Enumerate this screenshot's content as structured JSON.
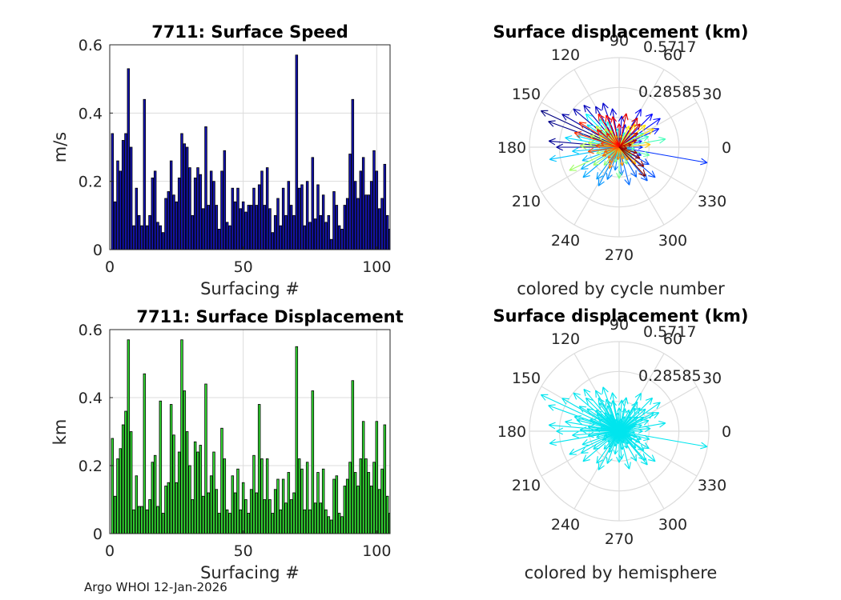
{
  "footer": "Argo WHOI 12-Jan-2026",
  "colors": {
    "speed_bar": "#1414b4",
    "disp_bar": "#33dd33",
    "grid": "#dcdcdc",
    "hemisphere_arrow": "#00e5ee"
  },
  "chart_data": [
    {
      "type": "bar",
      "title": "7711: Surface Speed",
      "xlabel": "Surfacing #",
      "ylabel": "m/s",
      "xlim": [
        0,
        105
      ],
      "ylim": [
        0,
        0.6
      ],
      "xticks": [
        "0",
        "50",
        "100"
      ],
      "yticks": [
        "0",
        "0.2",
        "0.4",
        "0.6"
      ],
      "x_start": 1,
      "values": [
        0.34,
        0.14,
        0.26,
        0.23,
        0.32,
        0.34,
        0.53,
        0.3,
        0.07,
        0.18,
        0.1,
        0.07,
        0.44,
        0.07,
        0.1,
        0.21,
        0.23,
        0.08,
        0.07,
        0.05,
        0.15,
        0.17,
        0.26,
        0.16,
        0.14,
        0.21,
        0.34,
        0.31,
        0.3,
        0.24,
        0.1,
        0.21,
        0.24,
        0.22,
        0.12,
        0.36,
        0.13,
        0.23,
        0.2,
        0.13,
        0.06,
        0.23,
        0.29,
        0.08,
        0.07,
        0.18,
        0.14,
        0.18,
        0.12,
        0.14,
        0.11,
        0.13,
        0.13,
        0.18,
        0.13,
        0.19,
        0.23,
        0.13,
        0.24,
        0.12,
        0.05,
        0.1,
        0.15,
        0.07,
        0.18,
        0.1,
        0.2,
        0.13,
        0.1,
        0.57,
        0.18,
        0.19,
        0.07,
        0.2,
        0.08,
        0.27,
        0.09,
        0.19,
        0.1,
        0.16,
        0.08,
        0.1,
        0.03,
        0.17,
        0.13,
        0.07,
        0.06,
        0.13,
        0.15,
        0.28,
        0.44,
        0.2,
        0.15,
        0.23,
        0.27,
        0.16,
        0.16,
        0.2,
        0.29,
        0.23,
        0.12,
        0.15,
        0.25,
        0.1,
        0.06
      ]
    },
    {
      "type": "polar_vectors",
      "title": "Surface displacement (km)",
      "caption": "colored by cycle number",
      "rticks": [
        "0.28585",
        "0.5717"
      ],
      "rmax": 0.5717,
      "angle_ticks": [
        "0",
        "30",
        "60",
        "90",
        "120",
        "150",
        "180",
        "210",
        "240",
        "270",
        "300",
        "330"
      ],
      "vectors": [
        [
          155,
          0.55
        ],
        [
          160,
          0.48
        ],
        [
          175,
          0.45
        ],
        [
          180,
          0.4
        ],
        [
          150,
          0.42
        ],
        [
          140,
          0.38
        ],
        [
          130,
          0.35
        ],
        [
          120,
          0.3
        ],
        [
          110,
          0.3
        ],
        [
          100,
          0.25
        ],
        [
          85,
          0.2
        ],
        [
          75,
          0.15
        ],
        [
          60,
          0.28
        ],
        [
          45,
          0.3
        ],
        [
          35,
          0.32
        ],
        [
          25,
          0.28
        ],
        [
          15,
          0.15
        ],
        [
          0,
          0.15
        ],
        [
          -10,
          0.57
        ],
        [
          -20,
          0.15
        ],
        [
          -30,
          0.22
        ],
        [
          -40,
          0.3
        ],
        [
          -50,
          0.28
        ],
        [
          -60,
          0.22
        ],
        [
          -75,
          0.25
        ],
        [
          -85,
          0.18
        ],
        [
          -100,
          0.15
        ],
        [
          -110,
          0.22
        ],
        [
          -118,
          0.28
        ],
        [
          -125,
          0.25
        ],
        [
          -140,
          0.3
        ],
        [
          -150,
          0.28
        ],
        [
          -160,
          0.25
        ],
        [
          -170,
          0.45
        ],
        [
          -175,
          0.3
        ],
        [
          170,
          0.35
        ],
        [
          165,
          0.28
        ],
        [
          145,
          0.25
        ],
        [
          135,
          0.3
        ],
        [
          125,
          0.22
        ],
        [
          115,
          0.18
        ],
        [
          95,
          0.12
        ],
        [
          70,
          0.1
        ],
        [
          50,
          0.12
        ],
        [
          30,
          0.18
        ],
        [
          20,
          0.2
        ],
        [
          10,
          0.3
        ],
        [
          -5,
          0.1
        ],
        [
          -15,
          0.2
        ],
        [
          -35,
          0.1
        ],
        [
          -65,
          0.12
        ],
        [
          -90,
          0.2
        ],
        [
          -105,
          0.1
        ],
        [
          -130,
          0.15
        ],
        [
          -145,
          0.2
        ],
        [
          -155,
          0.35
        ],
        [
          -165,
          0.15
        ],
        [
          178,
          0.25
        ],
        [
          172,
          0.2
        ],
        [
          158,
          0.2
        ],
        [
          150,
          0.15
        ],
        [
          138,
          0.2
        ],
        [
          128,
          0.15
        ],
        [
          118,
          0.12
        ],
        [
          105,
          0.08
        ],
        [
          80,
          0.08
        ],
        [
          65,
          0.15
        ],
        [
          55,
          0.18
        ],
        [
          40,
          0.22
        ],
        [
          28,
          0.25
        ],
        [
          18,
          0.1
        ],
        [
          5,
          0.2
        ],
        [
          -25,
          0.08
        ],
        [
          -45,
          0.15
        ],
        [
          -55,
          0.1
        ],
        [
          -70,
          0.08
        ],
        [
          -80,
          0.12
        ],
        [
          -95,
          0.08
        ],
        [
          -115,
          0.15
        ],
        [
          -122,
          0.12
        ],
        [
          -135,
          0.1
        ],
        [
          -152,
          0.12
        ],
        [
          -162,
          0.1
        ],
        [
          -172,
          0.2
        ],
        [
          176,
          0.15
        ],
        [
          168,
          0.12
        ],
        [
          162,
          0.3
        ],
        [
          148,
          0.3
        ],
        [
          142,
          0.18
        ],
        [
          132,
          0.12
        ],
        [
          122,
          0.25
        ],
        [
          112,
          0.22
        ],
        [
          102,
          0.2
        ],
        [
          90,
          0.15
        ],
        [
          78,
          0.22
        ],
        [
          58,
          0.22
        ],
        [
          48,
          0.2
        ],
        [
          38,
          0.15
        ],
        [
          22,
          0.12
        ],
        [
          12,
          0.08
        ],
        [
          -8,
          0.05
        ],
        [
          -18,
          0.12
        ],
        [
          -28,
          0.15
        ],
        [
          -38,
          0.2
        ],
        [
          -48,
          0.25
        ]
      ],
      "colormap": "jet"
    },
    {
      "type": "bar",
      "title": "7711: Surface Displacement",
      "xlabel": "Surfacing #",
      "ylabel": "km",
      "xlim": [
        0,
        105
      ],
      "ylim": [
        0,
        0.6
      ],
      "xticks": [
        "0",
        "50",
        "100"
      ],
      "yticks": [
        "0",
        "0.2",
        "0.4",
        "0.6"
      ],
      "x_start": 1,
      "values": [
        0.28,
        0.11,
        0.22,
        0.25,
        0.32,
        0.36,
        0.57,
        0.3,
        0.07,
        0.17,
        0.08,
        0.08,
        0.47,
        0.07,
        0.1,
        0.21,
        0.23,
        0.08,
        0.39,
        0.06,
        0.14,
        0.15,
        0.38,
        0.29,
        0.15,
        0.24,
        0.57,
        0.42,
        0.3,
        0.2,
        0.1,
        0.27,
        0.24,
        0.26,
        0.11,
        0.44,
        0.12,
        0.17,
        0.24,
        0.13,
        0.06,
        0.31,
        0.22,
        0.07,
        0.06,
        0.17,
        0.12,
        0.19,
        0.07,
        0.15,
        0.1,
        0.06,
        0.13,
        0.23,
        0.12,
        0.38,
        0.22,
        0.1,
        0.22,
        0.1,
        0.06,
        0.13,
        0.16,
        0.07,
        0.16,
        0.09,
        0.18,
        0.1,
        0.12,
        0.55,
        0.22,
        0.19,
        0.07,
        0.21,
        0.07,
        0.42,
        0.09,
        0.18,
        0.09,
        0.19,
        0.07,
        0.05,
        0.04,
        0.16,
        0.17,
        0.06,
        0.05,
        0.14,
        0.16,
        0.21,
        0.45,
        0.18,
        0.14,
        0.22,
        0.33,
        0.22,
        0.18,
        0.14,
        0.21,
        0.33,
        0.13,
        0.19,
        0.32,
        0.11,
        0.06
      ]
    },
    {
      "type": "polar_vectors",
      "title": "Surface displacement (km)",
      "caption": "colored by hemisphere",
      "rticks": [
        "0.28585",
        "0.5717"
      ],
      "rmax": 0.5717,
      "angle_ticks": [
        "0",
        "30",
        "60",
        "90",
        "120",
        "150",
        "180",
        "210",
        "240",
        "270",
        "300",
        "330"
      ],
      "vectors": [
        [
          155,
          0.55
        ],
        [
          160,
          0.48
        ],
        [
          175,
          0.45
        ],
        [
          180,
          0.4
        ],
        [
          150,
          0.42
        ],
        [
          140,
          0.38
        ],
        [
          130,
          0.35
        ],
        [
          120,
          0.3
        ],
        [
          110,
          0.3
        ],
        [
          100,
          0.25
        ],
        [
          85,
          0.2
        ],
        [
          75,
          0.15
        ],
        [
          60,
          0.28
        ],
        [
          45,
          0.3
        ],
        [
          35,
          0.32
        ],
        [
          25,
          0.28
        ],
        [
          15,
          0.15
        ],
        [
          0,
          0.15
        ],
        [
          -10,
          0.57
        ],
        [
          -20,
          0.15
        ],
        [
          -30,
          0.22
        ],
        [
          -40,
          0.3
        ],
        [
          -50,
          0.28
        ],
        [
          -60,
          0.22
        ],
        [
          -75,
          0.25
        ],
        [
          -85,
          0.18
        ],
        [
          -100,
          0.15
        ],
        [
          -110,
          0.22
        ],
        [
          -118,
          0.28
        ],
        [
          -125,
          0.25
        ],
        [
          -140,
          0.3
        ],
        [
          -150,
          0.28
        ],
        [
          -160,
          0.25
        ],
        [
          -170,
          0.45
        ],
        [
          -175,
          0.3
        ],
        [
          170,
          0.35
        ],
        [
          165,
          0.28
        ],
        [
          145,
          0.25
        ],
        [
          135,
          0.3
        ],
        [
          125,
          0.22
        ],
        [
          115,
          0.18
        ],
        [
          95,
          0.12
        ],
        [
          70,
          0.1
        ],
        [
          50,
          0.12
        ],
        [
          30,
          0.18
        ],
        [
          20,
          0.2
        ],
        [
          10,
          0.3
        ],
        [
          -5,
          0.1
        ],
        [
          -15,
          0.2
        ],
        [
          -35,
          0.1
        ],
        [
          -65,
          0.12
        ],
        [
          -90,
          0.2
        ],
        [
          -105,
          0.1
        ],
        [
          -130,
          0.15
        ],
        [
          -145,
          0.2
        ],
        [
          -155,
          0.35
        ],
        [
          -165,
          0.15
        ],
        [
          178,
          0.25
        ],
        [
          172,
          0.2
        ],
        [
          158,
          0.2
        ],
        [
          150,
          0.15
        ],
        [
          138,
          0.2
        ],
        [
          128,
          0.15
        ],
        [
          118,
          0.12
        ],
        [
          105,
          0.08
        ],
        [
          80,
          0.08
        ],
        [
          65,
          0.15
        ],
        [
          55,
          0.18
        ],
        [
          40,
          0.22
        ],
        [
          28,
          0.25
        ],
        [
          18,
          0.1
        ],
        [
          5,
          0.2
        ],
        [
          -25,
          0.08
        ],
        [
          -45,
          0.15
        ],
        [
          -55,
          0.1
        ],
        [
          -70,
          0.08
        ],
        [
          -80,
          0.12
        ],
        [
          -95,
          0.08
        ],
        [
          -115,
          0.15
        ],
        [
          -122,
          0.12
        ],
        [
          -135,
          0.1
        ],
        [
          -152,
          0.12
        ],
        [
          -162,
          0.1
        ],
        [
          -172,
          0.2
        ],
        [
          176,
          0.15
        ],
        [
          168,
          0.12
        ],
        [
          162,
          0.3
        ],
        [
          148,
          0.3
        ],
        [
          142,
          0.18
        ],
        [
          132,
          0.12
        ],
        [
          122,
          0.25
        ],
        [
          112,
          0.22
        ],
        [
          102,
          0.2
        ],
        [
          90,
          0.15
        ],
        [
          78,
          0.22
        ],
        [
          58,
          0.22
        ],
        [
          48,
          0.2
        ],
        [
          38,
          0.15
        ],
        [
          22,
          0.12
        ],
        [
          12,
          0.08
        ],
        [
          -8,
          0.05
        ],
        [
          -18,
          0.12
        ],
        [
          -28,
          0.15
        ],
        [
          -38,
          0.2
        ],
        [
          -48,
          0.25
        ]
      ],
      "colormap": "single"
    }
  ]
}
